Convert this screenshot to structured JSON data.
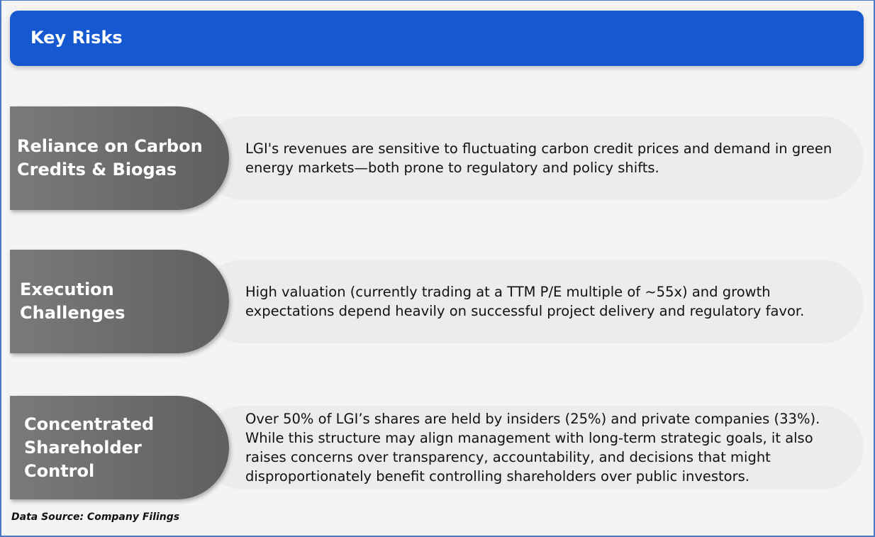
{
  "header": {
    "title": "Key Risks"
  },
  "risks": [
    {
      "title": "Reliance on Carbon Credits & Biogas",
      "description": "LGI's revenues are sensitive to fluctuating carbon credit prices and demand in green energy markets—both prone to regulatory and policy shifts."
    },
    {
      "title": "Execution Challenges",
      "description": "High valuation (currently trading at a TTM P/E multiple of ~55x) and growth expectations depend heavily on successful project delivery and regulatory favor."
    },
    {
      "title": "Concentrated Shareholder Control",
      "description": "Over 50% of LGI’s shares are held by insiders (25%) and private companies (33%). While this structure may align management with long-term strategic goals, it also raises concerns over transparency, accountability, and decisions that might disproportionately benefit controlling shareholders over public investors."
    }
  ],
  "footer": {
    "source": "Data Source: Company Filings"
  },
  "colors": {
    "header": "#1558d0",
    "pill": "#6a6a6a",
    "border": "#4a78c8"
  }
}
